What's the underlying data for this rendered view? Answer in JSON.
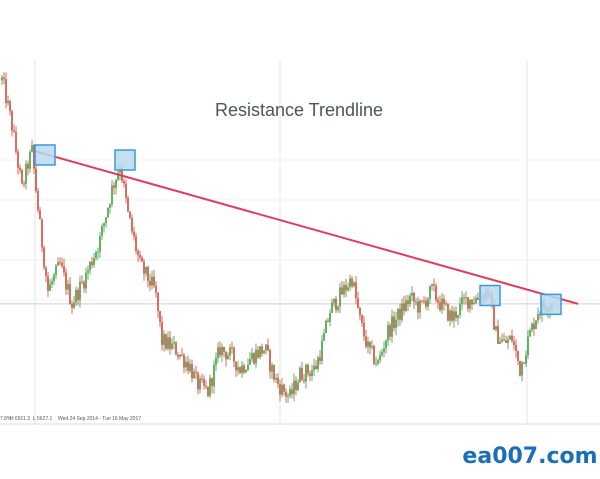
{
  "chart_data": {
    "type": "candlestick",
    "title": "Resistance Trendline",
    "footer_fragments": [
      "7.8%",
      "H 6911.3",
      "L 5627.1",
      "Wed 24 Sep 2014 - Tue 16 May 2017"
    ],
    "brand": "ea007.com",
    "colors": {
      "up": "#3f9e3f",
      "down": "#d04a3a",
      "trendline": "#e23c5c",
      "touch_fill": "#b9d9ef",
      "touch_stroke": "#3a9ad9",
      "grid": "#e6e6e6",
      "level_line": "#cfcfcf",
      "brand": "#1a6fb8",
      "title": "#4a5560"
    },
    "show_grid": true,
    "price_path_keypoints": [
      [
        0,
        6911
      ],
      [
        4,
        6850
      ],
      [
        12,
        6700
      ],
      [
        22,
        6450
      ],
      [
        28,
        6550
      ],
      [
        32,
        6600
      ],
      [
        40,
        6300
      ],
      [
        48,
        6050
      ],
      [
        60,
        6150
      ],
      [
        72,
        6000
      ],
      [
        85,
        6100
      ],
      [
        100,
        6250
      ],
      [
        112,
        6450
      ],
      [
        120,
        6550
      ],
      [
        128,
        6350
      ],
      [
        140,
        6150
      ],
      [
        155,
        6050
      ],
      [
        162,
        5850
      ],
      [
        175,
        5820
      ],
      [
        190,
        5750
      ],
      [
        197,
        5680
      ],
      [
        208,
        5650
      ],
      [
        220,
        5820
      ],
      [
        232,
        5790
      ],
      [
        240,
        5740
      ],
      [
        255,
        5800
      ],
      [
        265,
        5820
      ],
      [
        275,
        5700
      ],
      [
        282,
        5660
      ],
      [
        290,
        5627
      ],
      [
        300,
        5720
      ],
      [
        315,
        5740
      ],
      [
        322,
        5830
      ],
      [
        330,
        5970
      ],
      [
        342,
        6040
      ],
      [
        352,
        6100
      ],
      [
        360,
        5930
      ],
      [
        368,
        5820
      ],
      [
        378,
        5760
      ],
      [
        388,
        5890
      ],
      [
        400,
        5960
      ],
      [
        410,
        6020
      ],
      [
        420,
        5980
      ],
      [
        432,
        6050
      ],
      [
        440,
        6000
      ],
      [
        452,
        5940
      ],
      [
        465,
        6010
      ],
      [
        478,
        6020
      ],
      [
        488,
        6050
      ],
      [
        496,
        5880
      ],
      [
        504,
        5840
      ],
      [
        512,
        5860
      ],
      [
        520,
        5740
      ],
      [
        530,
        5880
      ],
      [
        538,
        5970
      ],
      [
        548,
        6000
      ],
      [
        552,
        6000
      ]
    ],
    "resistance_line": {
      "start": {
        "x": 35,
        "y": 6600
      },
      "end": {
        "x": 578,
        "y": 5997
      }
    },
    "touch_points": [
      {
        "x": 45,
        "y": 6585
      },
      {
        "x": 125,
        "y": 6565
      },
      {
        "x": 490,
        "y": 6030
      },
      {
        "x": 551,
        "y": 5995
      }
    ],
    "horizontal_level": 5997,
    "ylim": [
      5570,
      6960
    ],
    "xlim": [
      0,
      600
    ]
  }
}
